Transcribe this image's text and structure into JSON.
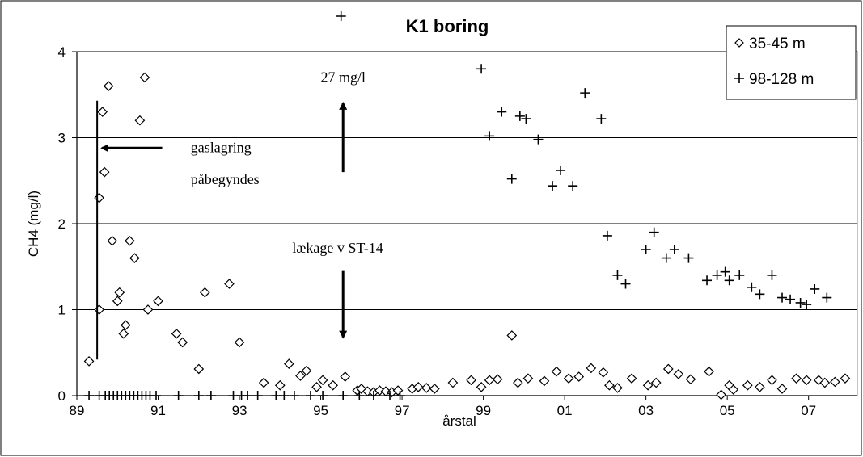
{
  "chart_data": {
    "type": "scatter",
    "title": "K1 boring",
    "xlabel": "årstal",
    "ylabel": "CH4 (mg/l)",
    "xlim": [
      1989,
      2008.2
    ],
    "ylim": [
      0,
      4
    ],
    "x_ticks": [
      1989,
      1991,
      1993,
      1995,
      1997,
      1999,
      2001,
      2003,
      2005,
      2007
    ],
    "x_tick_labels": [
      "89",
      "91",
      "93",
      "95",
      "97",
      "99",
      "01",
      "03",
      "05",
      "07"
    ],
    "y_ticks": [
      0,
      1,
      2,
      3,
      4
    ],
    "y_tick_labels": [
      "0",
      "1",
      "2",
      "3",
      "4"
    ],
    "grid": "horizontal",
    "legend_position": "top-right",
    "series": [
      {
        "name": "35-45 m",
        "marker": "diamond",
        "points": [
          [
            1989.3,
            0.4
          ],
          [
            1989.55,
            1.0
          ],
          [
            1989.55,
            2.3
          ],
          [
            1989.63,
            3.3
          ],
          [
            1989.68,
            2.6
          ],
          [
            1989.78,
            3.6
          ],
          [
            1989.87,
            1.8
          ],
          [
            1990.0,
            1.1
          ],
          [
            1990.05,
            1.2
          ],
          [
            1990.15,
            0.72
          ],
          [
            1990.2,
            0.82
          ],
          [
            1990.3,
            1.8
          ],
          [
            1990.42,
            1.6
          ],
          [
            1990.55,
            3.2
          ],
          [
            1990.67,
            3.7
          ],
          [
            1990.75,
            1.0
          ],
          [
            1991.0,
            1.1
          ],
          [
            1991.45,
            0.72
          ],
          [
            1991.6,
            0.62
          ],
          [
            1992.0,
            0.31
          ],
          [
            1992.15,
            1.2
          ],
          [
            1992.75,
            1.3
          ],
          [
            1993.0,
            0.62
          ],
          [
            1993.6,
            0.15
          ],
          [
            1994.0,
            0.12
          ],
          [
            1994.22,
            0.37
          ],
          [
            1994.5,
            0.23
          ],
          [
            1994.65,
            0.29
          ],
          [
            1994.9,
            0.1
          ],
          [
            1995.05,
            0.18
          ],
          [
            1995.3,
            0.12
          ],
          [
            1995.6,
            0.22
          ],
          [
            1995.9,
            0.06
          ],
          [
            1996.0,
            0.08
          ],
          [
            1996.15,
            0.05
          ],
          [
            1996.3,
            0.04
          ],
          [
            1996.45,
            0.06
          ],
          [
            1996.6,
            0.05
          ],
          [
            1996.75,
            0.04
          ],
          [
            1996.9,
            0.06
          ],
          [
            1997.25,
            0.08
          ],
          [
            1997.4,
            0.1
          ],
          [
            1997.6,
            0.09
          ],
          [
            1997.8,
            0.08
          ],
          [
            1998.25,
            0.15
          ],
          [
            1998.7,
            0.18
          ],
          [
            1998.95,
            0.1
          ],
          [
            1999.15,
            0.18
          ],
          [
            1999.35,
            0.19
          ],
          [
            1999.7,
            0.7
          ],
          [
            1999.85,
            0.15
          ],
          [
            2000.1,
            0.2
          ],
          [
            2000.5,
            0.17
          ],
          [
            2000.8,
            0.28
          ],
          [
            2001.1,
            0.2
          ],
          [
            2001.35,
            0.22
          ],
          [
            2001.65,
            0.32
          ],
          [
            2001.95,
            0.27
          ],
          [
            2002.1,
            0.12
          ],
          [
            2002.3,
            0.09
          ],
          [
            2002.65,
            0.2
          ],
          [
            2003.05,
            0.12
          ],
          [
            2003.25,
            0.15
          ],
          [
            2003.55,
            0.31
          ],
          [
            2003.8,
            0.25
          ],
          [
            2004.1,
            0.19
          ],
          [
            2004.55,
            0.28
          ],
          [
            2004.85,
            0.01
          ],
          [
            2005.05,
            0.12
          ],
          [
            2005.15,
            0.07
          ],
          [
            2005.5,
            0.12
          ],
          [
            2005.8,
            0.1
          ],
          [
            2006.1,
            0.18
          ],
          [
            2006.35,
            0.08
          ],
          [
            2006.7,
            0.2
          ],
          [
            2006.95,
            0.18
          ],
          [
            2007.25,
            0.18
          ],
          [
            2007.4,
            0.15
          ],
          [
            2007.65,
            0.16
          ],
          [
            2007.9,
            0.2
          ]
        ]
      },
      {
        "name": "98-128 m",
        "marker": "plus",
        "points": [
          [
            1989.3,
            0.0
          ],
          [
            1989.55,
            0.0
          ],
          [
            1989.7,
            0.0
          ],
          [
            1989.8,
            0.0
          ],
          [
            1989.9,
            0.0
          ],
          [
            1990.0,
            0.0
          ],
          [
            1990.1,
            0.0
          ],
          [
            1990.2,
            0.0
          ],
          [
            1990.3,
            0.0
          ],
          [
            1990.4,
            0.0
          ],
          [
            1990.5,
            0.0
          ],
          [
            1990.6,
            0.0
          ],
          [
            1990.7,
            0.0
          ],
          [
            1990.8,
            0.0
          ],
          [
            1990.95,
            0.0
          ],
          [
            1991.5,
            0.0
          ],
          [
            1992.0,
            0.0
          ],
          [
            1992.3,
            0.0
          ],
          [
            1992.85,
            0.0
          ],
          [
            1993.05,
            0.0
          ],
          [
            1993.2,
            0.0
          ],
          [
            1993.45,
            0.0
          ],
          [
            1993.9,
            0.0
          ],
          [
            1994.1,
            0.0
          ],
          [
            1994.35,
            0.0
          ],
          [
            1994.75,
            0.0
          ],
          [
            1995.05,
            0.0
          ],
          [
            1995.55,
            0.0
          ],
          [
            1995.95,
            0.0
          ],
          [
            1996.3,
            0.0
          ],
          [
            1996.7,
            0.0
          ],
          [
            1996.95,
            0.0
          ],
          [
            1998.95,
            3.8
          ],
          [
            1999.15,
            3.02
          ],
          [
            1999.45,
            3.3
          ],
          [
            1999.7,
            2.52
          ],
          [
            1999.9,
            3.25
          ],
          [
            2000.05,
            3.22
          ],
          [
            2000.35,
            2.98
          ],
          [
            2000.7,
            2.44
          ],
          [
            2000.9,
            2.62
          ],
          [
            2001.2,
            2.44
          ],
          [
            2001.5,
            3.52
          ],
          [
            2001.9,
            3.22
          ],
          [
            2002.05,
            1.86
          ],
          [
            2002.3,
            1.4
          ],
          [
            2002.5,
            1.3
          ],
          [
            2003.0,
            1.7
          ],
          [
            2003.2,
            1.9
          ],
          [
            2003.5,
            1.6
          ],
          [
            2003.7,
            1.7
          ],
          [
            2004.05,
            1.6
          ],
          [
            2004.5,
            1.34
          ],
          [
            2004.75,
            1.4
          ],
          [
            2004.95,
            1.44
          ],
          [
            2005.05,
            1.34
          ],
          [
            2005.3,
            1.4
          ],
          [
            2005.6,
            1.26
          ],
          [
            2005.8,
            1.18
          ],
          [
            2006.1,
            1.4
          ],
          [
            2006.35,
            1.14
          ],
          [
            2006.55,
            1.12
          ],
          [
            2006.8,
            1.08
          ],
          [
            2006.95,
            1.06
          ],
          [
            2007.15,
            1.24
          ],
          [
            2007.45,
            1.14
          ]
        ]
      }
    ],
    "offscale_point": {
      "x": 1995.5,
      "label": "+"
    },
    "annotations": [
      {
        "text": "27 mg/l",
        "x": 1995.55,
        "y": 3.65
      },
      {
        "text": "gaslagring",
        "x": 1991.8,
        "y": 2.83
      },
      {
        "text": "påbegyndes",
        "x": 1991.8,
        "y": 2.46
      },
      {
        "text": "lækage v ST-14",
        "x": 1994.3,
        "y": 1.66
      }
    ],
    "arrows": [
      {
        "x1": 1991.1,
        "y1": 2.88,
        "x2": 1989.62,
        "y2": 2.88
      },
      {
        "x1": 1995.55,
        "y1": 2.6,
        "x2": 1995.55,
        "y2": 3.4
      },
      {
        "x1": 1995.55,
        "y1": 1.45,
        "x2": 1995.55,
        "y2": 0.68
      }
    ],
    "marker_line": {
      "x": 1989.5,
      "y_from": 0.42,
      "y_to": 3.43
    }
  }
}
